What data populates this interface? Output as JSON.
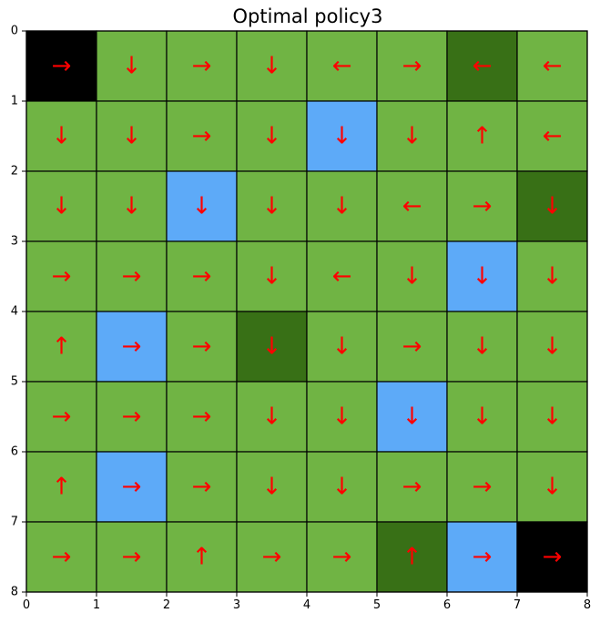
{
  "chart_data": {
    "type": "heatmap",
    "title": "Optimal policy3",
    "xlabel": "",
    "ylabel": "",
    "xlim": [
      0,
      8
    ],
    "ylim": [
      8,
      0
    ],
    "x_ticks": [
      "0",
      "1",
      "2",
      "3",
      "4",
      "5",
      "6",
      "7",
      "8"
    ],
    "y_ticks": [
      "0",
      "1",
      "2",
      "3",
      "4",
      "5",
      "6",
      "7",
      "8"
    ],
    "grid": true,
    "cell_types": [
      [
        "black",
        "green",
        "green",
        "green",
        "green",
        "green",
        "dark",
        "green"
      ],
      [
        "green",
        "green",
        "green",
        "green",
        "blue",
        "green",
        "green",
        "green"
      ],
      [
        "green",
        "green",
        "blue",
        "green",
        "green",
        "green",
        "green",
        "dark"
      ],
      [
        "green",
        "green",
        "green",
        "green",
        "green",
        "green",
        "blue",
        "green"
      ],
      [
        "green",
        "blue",
        "green",
        "dark",
        "green",
        "green",
        "green",
        "green"
      ],
      [
        "green",
        "green",
        "green",
        "green",
        "green",
        "blue",
        "green",
        "green"
      ],
      [
        "green",
        "blue",
        "green",
        "green",
        "green",
        "green",
        "green",
        "green"
      ],
      [
        "green",
        "green",
        "green",
        "green",
        "green",
        "dark",
        "blue",
        "black"
      ]
    ],
    "policy": [
      [
        "→",
        "↓",
        "→",
        "↓",
        "←",
        "→",
        "←",
        "←"
      ],
      [
        "↓",
        "↓",
        "→",
        "↓",
        "↓",
        "↓",
        "↑",
        "←"
      ],
      [
        "↓",
        "↓",
        "↓",
        "↓",
        "↓",
        "←",
        "→",
        "↓"
      ],
      [
        "→",
        "→",
        "→",
        "↓",
        "←",
        "↓",
        "↓",
        "↓"
      ],
      [
        "↑",
        "→",
        "→",
        "↓",
        "↓",
        "→",
        "↓",
        "↓"
      ],
      [
        "→",
        "→",
        "→",
        "↓",
        "↓",
        "↓",
        "↓",
        "↓"
      ],
      [
        "↑",
        "→",
        "→",
        "↓",
        "↓",
        "→",
        "→",
        "↓"
      ],
      [
        "→",
        "→",
        "↑",
        "→",
        "→",
        "↑",
        "→",
        "→"
      ]
    ],
    "colors": {
      "green": "#70b444",
      "dark": "#387016",
      "blue": "#5daaf8",
      "black": "#000000",
      "arrow": "#ff0000",
      "gridline": "#000000"
    }
  }
}
